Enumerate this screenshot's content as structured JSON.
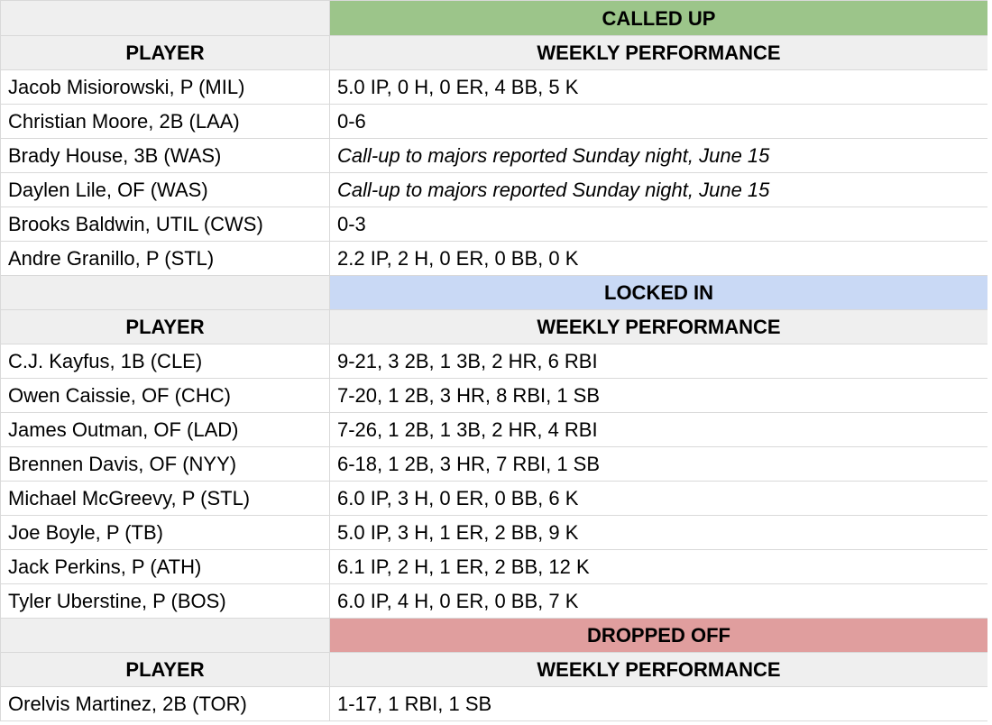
{
  "colors": {
    "called_up": "#9cc58a",
    "locked_in": "#c9d9f5",
    "dropped_off": "#e09e9e",
    "header_bg": "#efefef",
    "grid": "#d9d9d9"
  },
  "sections": [
    {
      "title": "CALLED UP",
      "col_player": "PLAYER",
      "col_perf": "WEEKLY PERFORMANCE",
      "rows": [
        {
          "player": "Jacob Misiorowski, P (MIL)",
          "perf": "5.0 IP, 0 H, 0 ER, 4 BB, 5 K"
        },
        {
          "player": "Christian Moore, 2B (LAA)",
          "perf": "0-6"
        },
        {
          "player": "Brady House, 3B (WAS)",
          "perf": "Call-up to majors reported Sunday night, June 15"
        },
        {
          "player": "Daylen Lile, OF (WAS)",
          "perf": "Call-up to majors reported Sunday night, June 15"
        },
        {
          "player": "Brooks Baldwin, UTIL (CWS)",
          "perf": "0-3"
        },
        {
          "player": "Andre Granillo, P (STL)",
          "perf": "2.2 IP, 2 H, 0 ER, 0 BB, 0 K"
        }
      ]
    },
    {
      "title": "LOCKED IN",
      "col_player": "PLAYER",
      "col_perf": "WEEKLY PERFORMANCE",
      "rows": [
        {
          "player": "C.J. Kayfus, 1B (CLE)",
          "perf": "9-21, 3 2B, 1 3B, 2 HR, 6 RBI"
        },
        {
          "player": "Owen Caissie, OF (CHC)",
          "perf": "7-20, 1 2B, 3 HR, 8 RBI, 1 SB"
        },
        {
          "player": "James Outman, OF (LAD)",
          "perf": "7-26, 1 2B, 1 3B, 2 HR, 4 RBI"
        },
        {
          "player": "Brennen Davis, OF (NYY)",
          "perf": "6-18, 1 2B, 3 HR, 7 RBI, 1 SB"
        },
        {
          "player": "Michael McGreevy, P (STL)",
          "perf": "6.0 IP, 3 H, 0 ER, 0 BB, 6 K"
        },
        {
          "player": "Joe Boyle, P (TB)",
          "perf": "5.0 IP, 3 H, 1 ER, 2 BB, 9 K"
        },
        {
          "player": "Jack Perkins, P (ATH)",
          "perf": "6.1 IP, 2 H, 1 ER, 2 BB, 12 K"
        },
        {
          "player": "Tyler Uberstine, P (BOS)",
          "perf": "6.0 IP, 4 H, 0 ER, 0 BB, 7 K"
        }
      ]
    },
    {
      "title": "DROPPED OFF",
      "col_player": "PLAYER",
      "col_perf": "WEEKLY PERFORMANCE",
      "rows": [
        {
          "player": "Orelvis Martinez, 2B (TOR)",
          "perf": "1-17, 1 RBI, 1 SB"
        }
      ]
    }
  ]
}
